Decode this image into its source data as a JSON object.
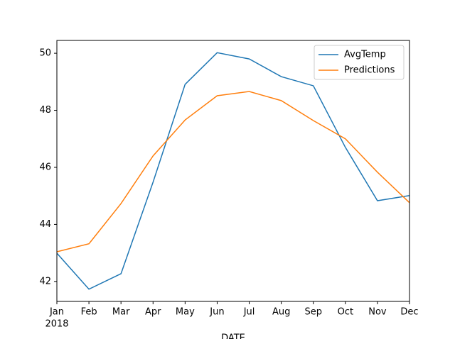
{
  "chart_data": {
    "type": "line",
    "categories": [
      "Jan",
      "Feb",
      "Mar",
      "Apr",
      "May",
      "Jun",
      "Jul",
      "Aug",
      "Sep",
      "Oct",
      "Nov",
      "Dec"
    ],
    "year_label": "2018",
    "x_label": "DATE",
    "series": [
      {
        "name": "AvgTemp",
        "color": "#1f77b4",
        "values": [
          42.99,
          41.73,
          42.27,
          45.48,
          48.91,
          50.02,
          49.8,
          49.18,
          48.86,
          46.7,
          44.83,
          45.01
        ]
      },
      {
        "name": "Predictions",
        "color": "#ff7f0e",
        "values": [
          43.04,
          43.32,
          44.73,
          46.4,
          47.66,
          48.51,
          48.66,
          48.34,
          47.64,
          47.0,
          45.83,
          44.76
        ]
      }
    ],
    "ylim": [
      41.3,
      50.45
    ],
    "yticks": [
      42,
      44,
      46,
      48,
      50
    ],
    "legend": "upper right",
    "grid": false
  }
}
